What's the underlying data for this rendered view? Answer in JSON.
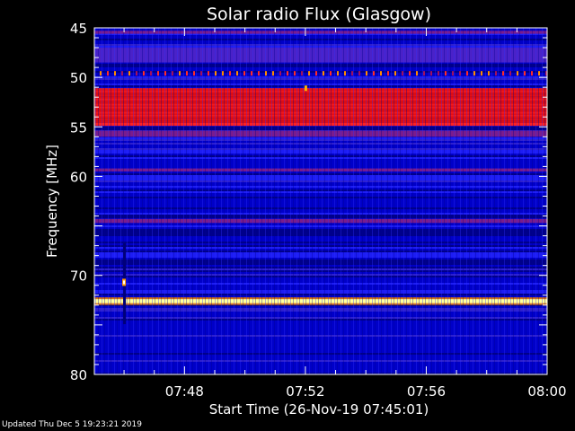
{
  "footer": {
    "updated": "Updated Thu Dec  5 19:23:21 2019"
  },
  "chart_data": {
    "type": "heatmap",
    "title": "Solar radio Flux (Glasgow)",
    "xlabel": "Start Time (26-Nov-19 07:45:01)",
    "ylabel": "Frequency [MHz]",
    "x_unit": "time (HH:MM)",
    "xlim": [
      "07:45:01",
      "08:00:00"
    ],
    "x_ticks": [
      "07:48",
      "07:52",
      "07:56",
      "08:00"
    ],
    "ylim": [
      45,
      80
    ],
    "y_inverted": true,
    "y_ticks": [
      45,
      50,
      55,
      60,
      70,
      80
    ],
    "colormap": [
      "#0000c8",
      "#1e1ef0",
      "#6a1fa0",
      "#c80a2a",
      "#ff1010",
      "#ffa000",
      "#ffff80"
    ],
    "bands": [
      {
        "freq": [
          45.3,
          45.6
        ],
        "level": "purple"
      },
      {
        "freq": [
          47.0,
          48.5
        ],
        "level": "purple-blue"
      },
      {
        "freq": [
          49.4,
          49.7
        ],
        "level": "dotted orange"
      },
      {
        "freq": [
          51.1,
          54.6
        ],
        "level": "red"
      },
      {
        "freq": [
          54.6,
          54.9
        ],
        "level": "bright red"
      },
      {
        "freq": [
          55.4,
          56.0
        ],
        "level": "purple"
      },
      {
        "freq": [
          59.2,
          59.5
        ],
        "level": "purple"
      },
      {
        "freq": [
          64.3,
          64.7
        ],
        "level": "purple"
      },
      {
        "freq": [
          72.4,
          72.8
        ],
        "level": "yellow-white"
      }
    ],
    "spikes": [
      {
        "time": "07:46",
        "freq": 70.7
      },
      {
        "time": "07:52",
        "freq": 51.1
      }
    ]
  }
}
